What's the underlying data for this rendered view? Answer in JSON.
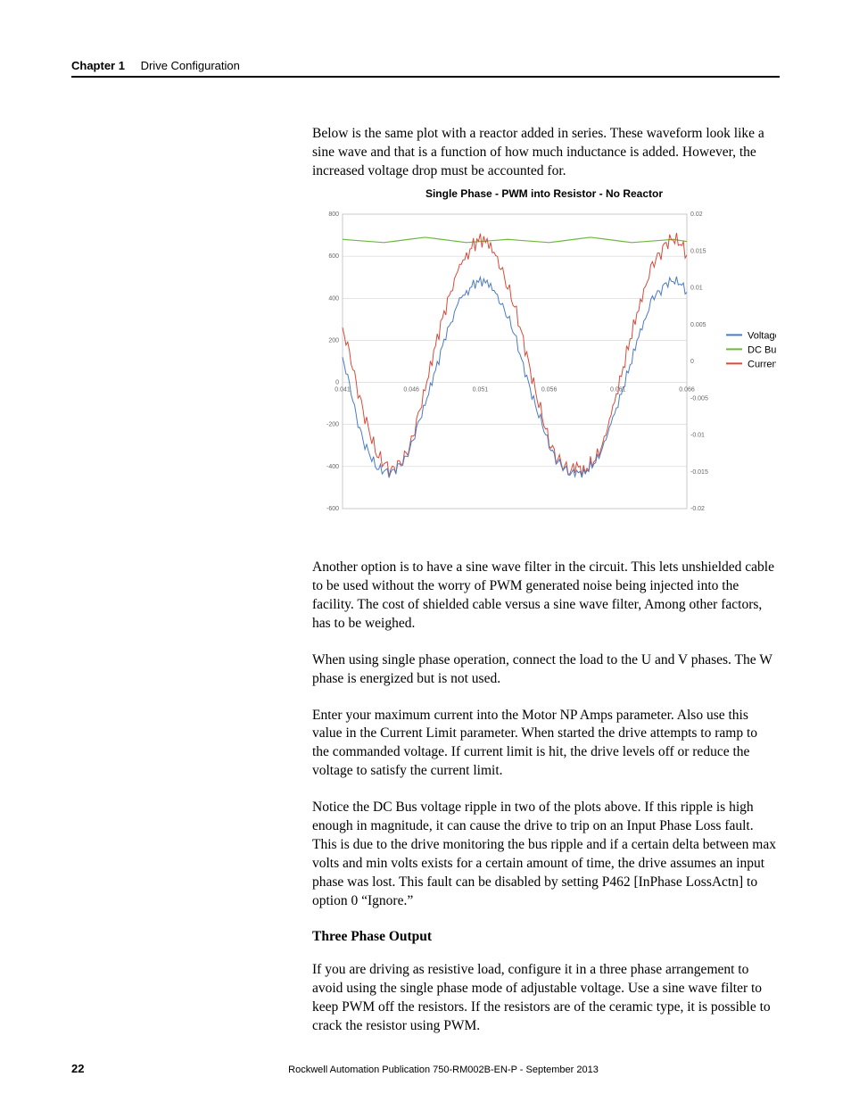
{
  "header": {
    "chapter_label": "Chapter 1",
    "section_label": "Drive Configuration"
  },
  "intro_para": "Below is the same plot with a reactor added in series. These waveform look like a sine wave and that is a function of how much inductance is added. However, the increased voltage drop must be accounted for.",
  "chart": {
    "title": "Single Phase - PWM into Resistor - No Reactor",
    "type": "line",
    "left_axis": {
      "min": -600,
      "max": 800,
      "ticks": [
        -600,
        -400,
        -200,
        0,
        200,
        400,
        600,
        800
      ],
      "fontsize": 7,
      "color": "#666666"
    },
    "right_axis": {
      "min": -0.02,
      "max": 0.02,
      "ticks": [
        -0.02,
        -0.015,
        -0.01,
        -0.005,
        0,
        0.005,
        0.01,
        0.015,
        0.02
      ],
      "fontsize": 7,
      "color": "#666666"
    },
    "x_axis": {
      "ticks": [
        0.041,
        0.046,
        0.051,
        0.056,
        0.061,
        0.066
      ],
      "fontsize": 7,
      "color": "#666666"
    },
    "grid_color": "#c8c8c8",
    "background_color": "#ffffff",
    "legend": {
      "items": [
        {
          "label": "Voltage",
          "color": "#4a7ac7"
        },
        {
          "label": "DC Bus",
          "color": "#6fb93f"
        },
        {
          "label": "Current",
          "color": "#d94a3a"
        }
      ],
      "fontsize": 11
    },
    "series": {
      "voltage": {
        "color": "#4a7ac7",
        "stroke_width": 1.0,
        "x": [
          0.041,
          0.0415,
          0.042,
          0.0425,
          0.043,
          0.0435,
          0.044,
          0.0445,
          0.045,
          0.0455,
          0.046,
          0.0465,
          0.047,
          0.0475,
          0.048,
          0.0485,
          0.049,
          0.0495,
          0.05,
          0.0505,
          0.051,
          0.0515,
          0.052,
          0.0525,
          0.053,
          0.0535,
          0.054,
          0.0545,
          0.055,
          0.0555,
          0.056,
          0.0565,
          0.057,
          0.0575,
          0.058,
          0.0585,
          0.059,
          0.0595,
          0.06,
          0.0605,
          0.061,
          0.0615,
          0.062,
          0.0625,
          0.063,
          0.0635,
          0.064,
          0.0645,
          0.065,
          0.0655,
          0.066
        ],
        "y": [
          120,
          0,
          -160,
          -280,
          -350,
          -410,
          -420,
          -430,
          -400,
          -370,
          -300,
          -200,
          -110,
          0,
          110,
          230,
          310,
          410,
          430,
          470,
          480,
          470,
          430,
          370,
          310,
          230,
          110,
          0,
          -110,
          -200,
          -300,
          -370,
          -400,
          -430,
          -420,
          -430,
          -400,
          -370,
          -300,
          -200,
          -110,
          0,
          110,
          230,
          310,
          410,
          430,
          470,
          480,
          470,
          430
        ],
        "noise_amplitude": 28
      },
      "dcbus": {
        "color": "#6fb93f",
        "stroke_width": 1.2,
        "x": [
          0.041,
          0.044,
          0.047,
          0.05,
          0.053,
          0.056,
          0.059,
          0.062,
          0.065,
          0.066
        ],
        "y": [
          680,
          665,
          690,
          665,
          680,
          665,
          690,
          665,
          680,
          670
        ],
        "noise_amplitude": 0
      },
      "current": {
        "color": "#d94a3a",
        "stroke_width": 1.0,
        "x": [
          0.041,
          0.0415,
          0.042,
          0.0425,
          0.043,
          0.0435,
          0.044,
          0.0445,
          0.045,
          0.0455,
          0.046,
          0.0465,
          0.047,
          0.0475,
          0.048,
          0.0485,
          0.049,
          0.0495,
          0.05,
          0.0505,
          0.051,
          0.0515,
          0.052,
          0.0525,
          0.053,
          0.0535,
          0.054,
          0.0545,
          0.055,
          0.0555,
          0.056,
          0.0565,
          0.057,
          0.0575,
          0.058,
          0.0585,
          0.059,
          0.0595,
          0.06,
          0.0605,
          0.061,
          0.0615,
          0.062,
          0.0625,
          0.063,
          0.0635,
          0.064,
          0.0645,
          0.065,
          0.0655,
          0.066
        ],
        "y": [
          0.0046,
          0.0015,
          -0.003,
          -0.0068,
          -0.01,
          -0.0128,
          -0.0138,
          -0.0148,
          -0.014,
          -0.013,
          -0.011,
          -0.0075,
          -0.004,
          0,
          0.004,
          0.0075,
          0.0105,
          0.0135,
          0.0145,
          0.016,
          0.0165,
          0.016,
          0.0145,
          0.0125,
          0.01,
          0.0075,
          0.004,
          0,
          -0.004,
          -0.0075,
          -0.011,
          -0.013,
          -0.014,
          -0.0148,
          -0.0138,
          -0.0148,
          -0.014,
          -0.013,
          -0.011,
          -0.0075,
          -0.004,
          0,
          0.004,
          0.0075,
          0.0105,
          0.0135,
          0.0145,
          0.016,
          0.0165,
          0.016,
          0.0145
        ],
        "noise_amplitude": 0.0012
      }
    }
  },
  "paras": [
    "Another option is to have a sine wave filter in the circuit. This lets unshielded cable to be used without the worry of PWM generated noise being injected into the facility. The cost of shielded cable versus a sine wave filter, Among other factors, has to be weighed.",
    "When using single phase operation, connect the load to the U and V phases. The W phase is energized but is not used.",
    "Enter your maximum current into the Motor NP Amps parameter. Also use this value in the Current Limit parameter. When started the drive attempts to ramp to the commanded voltage. If current limit is hit, the drive levels off or reduce the voltage to satisfy the current limit.",
    "Notice the DC Bus voltage ripple in two of the plots above. If this ripple is high enough in magnitude, it can cause the drive to trip on an Input Phase Loss fault. This is due to the drive monitoring the bus ripple and if a certain delta between max volts and min volts exists for a certain amount of time, the drive assumes an input phase was lost. This fault can be disabled by setting P462 [InPhase LossActn] to option 0 “Ignore.”"
  ],
  "subheading": "Three Phase Output",
  "para_after_sub": "If you are driving as resistive load, configure it in a three phase arrangement to avoid using the single phase mode of adjustable voltage. Use a sine wave filter to keep PWM off the resistors. If the resistors are of the ceramic type, it is possible to crack the resistor using PWM.",
  "footer": {
    "page_number": "22",
    "publication": "Rockwell Automation Publication 750-RM002B-EN-P - September 2013"
  }
}
